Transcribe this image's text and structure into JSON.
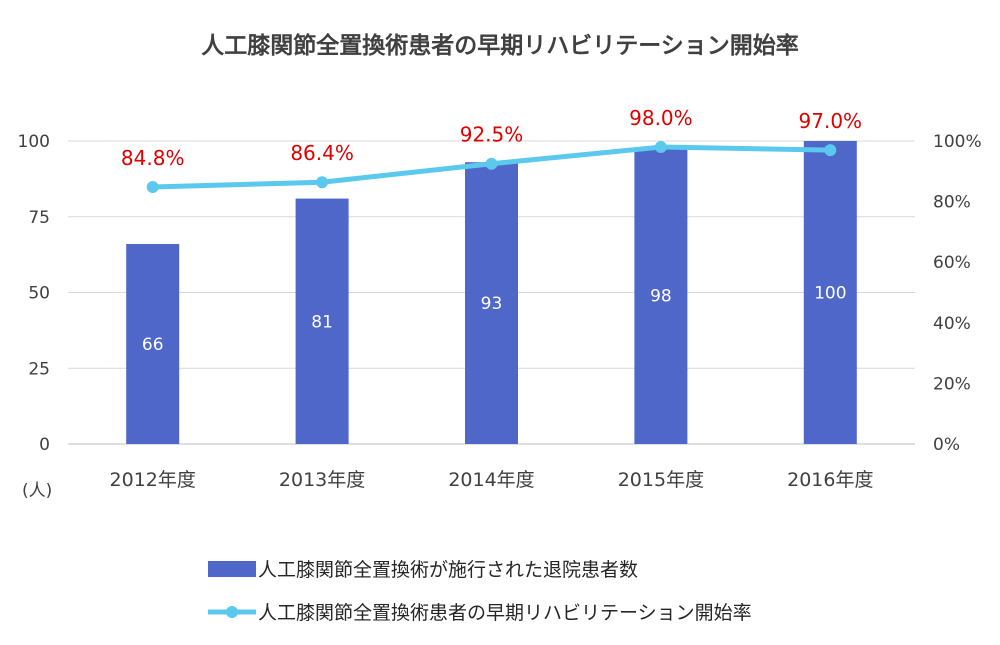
{
  "chart_data": {
    "type": "bar+line",
    "title": "人工膝関節全置換術患者の早期リハビリテーション開始率",
    "categories": [
      "2012年度",
      "2013年度",
      "2014年度",
      "2015年度",
      "2016年度"
    ],
    "series": [
      {
        "name": "人工膝関節全置換術が施行された退院患者数",
        "type": "bar",
        "axis": "left",
        "values": [
          66,
          81,
          93,
          98,
          100
        ],
        "labels": [
          "66",
          "81",
          "93",
          "98",
          "100"
        ],
        "color": "#4f67c9"
      },
      {
        "name": "人工膝関節全置換術患者の早期リハビリテーション開始率",
        "type": "line",
        "axis": "right",
        "values": [
          84.8,
          86.4,
          92.5,
          98.0,
          97.0
        ],
        "labels": [
          "84.8%",
          "86.4%",
          "92.5%",
          "98.0%",
          "97.0%"
        ],
        "color": "#5bc8ee",
        "label_color": "#e00000"
      }
    ],
    "y_left": {
      "ylim": [
        0,
        100
      ],
      "ticks": [
        "0",
        "25",
        "50",
        "75",
        "100"
      ],
      "tick_values": [
        0,
        25,
        50,
        75,
        100
      ],
      "unit_label": "(人)"
    },
    "y_right": {
      "ylim": [
        0,
        100
      ],
      "ticks": [
        "0%",
        "20%",
        "40%",
        "60%",
        "80%",
        "100%"
      ],
      "tick_values": [
        0,
        20,
        40,
        60,
        80,
        100
      ]
    },
    "grid": true,
    "legend_position": "bottom"
  }
}
